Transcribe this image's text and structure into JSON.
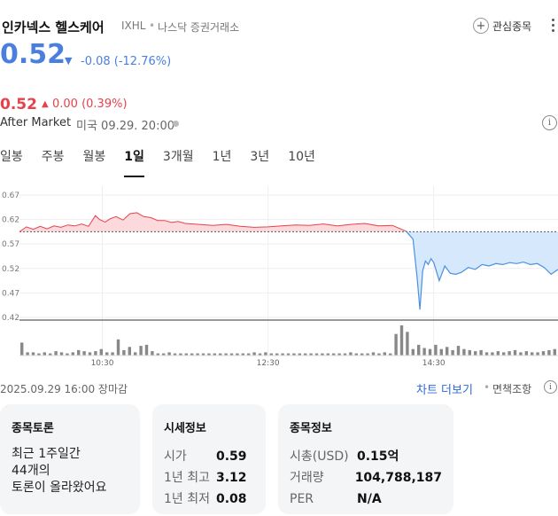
{
  "header": {
    "name": "인카넥스 헬스케어",
    "ticker": "IXHL",
    "separator": "•",
    "exchange": "나스닥 증권거래소",
    "watch_label": "관심종목"
  },
  "quote": {
    "price": "0.52",
    "direction_icon": "triangle-down-icon",
    "change": "-0.08 (-12.76%)",
    "color": "#4a7fe0"
  },
  "after_market": {
    "price": "0.52",
    "direction_icon": "triangle-up-icon",
    "change": "0.00 (0.39%)",
    "label": "After Market",
    "time": "미국 09.29. 20:00",
    "color": "#e9414a"
  },
  "tabs": [
    {
      "label": "일봉",
      "active": false
    },
    {
      "label": "주봉",
      "active": false
    },
    {
      "label": "월봉",
      "active": false
    },
    {
      "label": "1일",
      "active": true
    },
    {
      "label": "3개월",
      "active": false
    },
    {
      "label": "1년",
      "active": false
    },
    {
      "label": "3년",
      "active": false
    },
    {
      "label": "10년",
      "active": false
    }
  ],
  "chart_data": {
    "type": "area",
    "y_ticks": [
      "0.67",
      "0.62",
      "0.57",
      "0.52",
      "0.47",
      "0.42"
    ],
    "ylim": [
      0.42,
      0.67
    ],
    "reference_line": 0.595,
    "x_ticks": [
      "10:30",
      "12:30",
      "14:30"
    ],
    "x_range_minutes": [
      570,
      960
    ],
    "up_color": "#e9414a",
    "down_color": "#4a90e2",
    "series": [
      {
        "x": [
          570,
          575,
          580,
          585,
          590,
          595,
          600,
          605,
          610,
          615,
          620,
          625,
          628,
          632,
          636,
          640,
          645,
          650,
          655,
          660,
          665,
          670,
          675,
          680,
          685,
          690,
          700,
          710,
          720,
          730,
          740,
          750,
          760,
          770,
          780,
          790,
          800,
          810,
          820,
          830,
          840,
          850,
          855,
          858,
          860,
          862,
          864,
          866,
          868,
          870,
          874,
          878,
          882,
          886,
          890,
          895,
          900,
          905,
          910,
          915,
          920,
          925,
          930,
          935,
          940,
          945,
          950,
          955,
          960
        ],
        "y": [
          0.595,
          0.605,
          0.6,
          0.606,
          0.601,
          0.607,
          0.604,
          0.609,
          0.607,
          0.611,
          0.606,
          0.628,
          0.62,
          0.615,
          0.622,
          0.626,
          0.619,
          0.632,
          0.634,
          0.626,
          0.624,
          0.618,
          0.618,
          0.614,
          0.616,
          0.612,
          0.61,
          0.608,
          0.61,
          0.606,
          0.604,
          0.605,
          0.607,
          0.609,
          0.608,
          0.611,
          0.607,
          0.61,
          0.612,
          0.607,
          0.608,
          0.596,
          0.58,
          0.5,
          0.436,
          0.515,
          0.535,
          0.528,
          0.54,
          0.532,
          0.495,
          0.525,
          0.51,
          0.508,
          0.512,
          0.522,
          0.518,
          0.528,
          0.525,
          0.53,
          0.528,
          0.532,
          0.53,
          0.533,
          0.528,
          0.53,
          0.522,
          0.508,
          0.518
        ]
      }
    ],
    "volume": [
      12,
      3,
      3,
      2,
      3,
      2,
      4,
      3,
      2,
      3,
      5,
      4,
      3,
      4,
      6,
      3,
      3,
      15,
      5,
      8,
      3,
      9,
      10,
      4,
      2,
      2,
      3,
      2,
      2,
      2,
      2,
      2,
      2,
      2,
      2,
      2,
      2,
      2,
      2,
      2,
      2,
      3,
      2,
      3,
      2,
      2,
      2,
      2,
      2,
      2,
      2,
      2,
      2,
      2,
      2,
      2,
      2,
      2,
      3,
      2,
      2,
      2,
      3,
      2,
      3,
      2,
      20,
      28,
      22,
      6,
      10,
      7,
      6,
      10,
      6,
      8,
      5,
      9,
      6,
      5,
      4,
      5,
      3,
      3,
      4,
      3,
      4,
      5,
      3,
      4,
      3,
      3,
      4,
      5,
      6
    ]
  },
  "footer": {
    "date": "2025.09.29 16:00 장마감",
    "chart_more": "차트 더보기",
    "separator": "•",
    "disclaimer": "면책조항"
  },
  "cards": {
    "discussion": {
      "title": "종목토론",
      "line1": "최근 1주일간",
      "count": "44개의",
      "line3": "토론이 올라왔어요"
    },
    "market": {
      "title": "시세정보",
      "rows": [
        {
          "label": "시가",
          "value": "0.59"
        },
        {
          "label": "1년 최고",
          "value": "3.12"
        },
        {
          "label": "1년 최저",
          "value": "0.08"
        }
      ]
    },
    "stock": {
      "title": "종목정보",
      "rows": [
        {
          "label": "시총(USD)",
          "value": "0.15억"
        },
        {
          "label": "거래량",
          "value": "104,788,187"
        },
        {
          "label": "PER",
          "value": "N/A"
        }
      ]
    }
  }
}
